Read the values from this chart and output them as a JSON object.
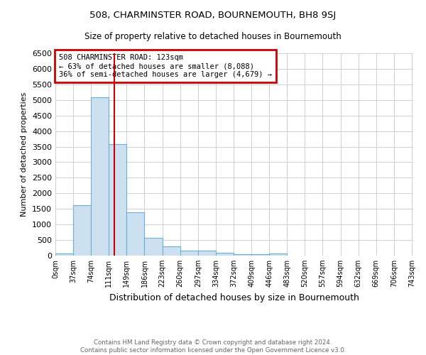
{
  "title": "508, CHARMINSTER ROAD, BOURNEMOUTH, BH8 9SJ",
  "subtitle": "Size of property relative to detached houses in Bournemouth",
  "xlabel": "Distribution of detached houses by size in Bournemouth",
  "ylabel": "Number of detached properties",
  "bar_edges": [
    0,
    37,
    74,
    111,
    148,
    185,
    222,
    259,
    296,
    333,
    370,
    407,
    444,
    481,
    518,
    555,
    592,
    629,
    666,
    703,
    740
  ],
  "bar_heights": [
    70,
    1630,
    5080,
    3580,
    1400,
    580,
    300,
    155,
    155,
    100,
    55,
    45,
    70,
    0,
    0,
    0,
    0,
    0,
    0,
    0
  ],
  "bar_color": "#cce0f0",
  "bar_edgecolor": "#6aafd6",
  "property_line_x": 123,
  "property_line_color": "#cc0000",
  "annotation_title": "508 CHARMINSTER ROAD: 123sqm",
  "annotation_line1": "← 63% of detached houses are smaller (8,088)",
  "annotation_line2": "36% of semi-detached houses are larger (4,679) →",
  "annotation_box_color": "#cc0000",
  "ylim": [
    0,
    6500
  ],
  "xlim": [
    0,
    743
  ],
  "tick_labels": [
    "0sqm",
    "37sqm",
    "74sqm",
    "111sqm",
    "149sqm",
    "186sqm",
    "223sqm",
    "260sqm",
    "297sqm",
    "334sqm",
    "372sqm",
    "409sqm",
    "446sqm",
    "483sqm",
    "520sqm",
    "557sqm",
    "594sqm",
    "632sqm",
    "669sqm",
    "706sqm",
    "743sqm"
  ],
  "tick_positions": [
    0,
    37,
    74,
    111,
    148,
    185,
    222,
    259,
    296,
    333,
    370,
    407,
    444,
    481,
    518,
    555,
    592,
    629,
    666,
    703,
    740
  ],
  "yticks": [
    0,
    500,
    1000,
    1500,
    2000,
    2500,
    3000,
    3500,
    4000,
    4500,
    5000,
    5500,
    6000,
    6500
  ],
  "footer1": "Contains HM Land Registry data © Crown copyright and database right 2024.",
  "footer2": "Contains public sector information licensed under the Open Government Licence v3.0.",
  "bg_color": "#ffffff",
  "grid_color": "#d0d0d0"
}
